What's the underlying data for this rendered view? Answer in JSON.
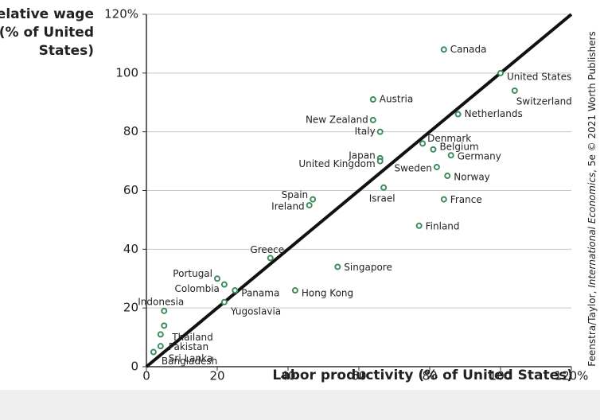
{
  "chart_data": {
    "type": "scatter",
    "ylabel": [
      "Relative wage",
      "(% of United",
      "States)"
    ],
    "xlabel": "Labor productivity (% of United States)",
    "credit": [
      "Feenstra/Taylor, ",
      "International Economics",
      ", 5e © 2021 Worth Publishers"
    ],
    "series": [
      {
        "color": "#3d8c5f",
        "labels": [
          "Canada",
          "United States",
          "Switzerland",
          "Netherlands",
          "Austria",
          "New Zealand",
          "Italy",
          "Denmark",
          "Belgium",
          "Germany",
          "Japan",
          "United Kingdom",
          "Sweden",
          "Norway",
          "Israel",
          "Spain",
          "Ireland",
          "France",
          "Finland",
          "Greece",
          "Singapore",
          "Portugal",
          "Colombia",
          "Panama",
          "Hong Kong",
          "Yugoslavia",
          "Indonesia",
          "Thailand",
          "Pakistan",
          "Sri Lanka",
          "Bangladesh"
        ],
        "x": [
          84,
          100,
          104,
          88,
          64,
          64,
          66,
          78,
          81,
          86,
          66,
          66,
          82,
          85,
          67,
          47,
          46,
          84,
          77,
          35,
          54,
          20,
          22,
          25,
          42,
          22,
          5,
          5,
          4,
          4,
          2
        ],
        "values": [
          108,
          100,
          94,
          86,
          91,
          84,
          80,
          76,
          74,
          72,
          71,
          70,
          68,
          65,
          61,
          57,
          55,
          57,
          48,
          37,
          34,
          30,
          28,
          26,
          26,
          22,
          19,
          14,
          11,
          7,
          5
        ]
      }
    ],
    "xlim": [
      0,
      120
    ],
    "ylim": [
      0,
      120
    ],
    "xticks": [
      0,
      20,
      40,
      60,
      80,
      100,
      {
        "value": 120,
        "label": "120%"
      }
    ],
    "yticks": [
      0,
      20,
      40,
      60,
      80,
      100,
      {
        "value": 120,
        "label": "120%"
      }
    ],
    "grid": true,
    "diagonal": true,
    "line_color": "#111111"
  }
}
